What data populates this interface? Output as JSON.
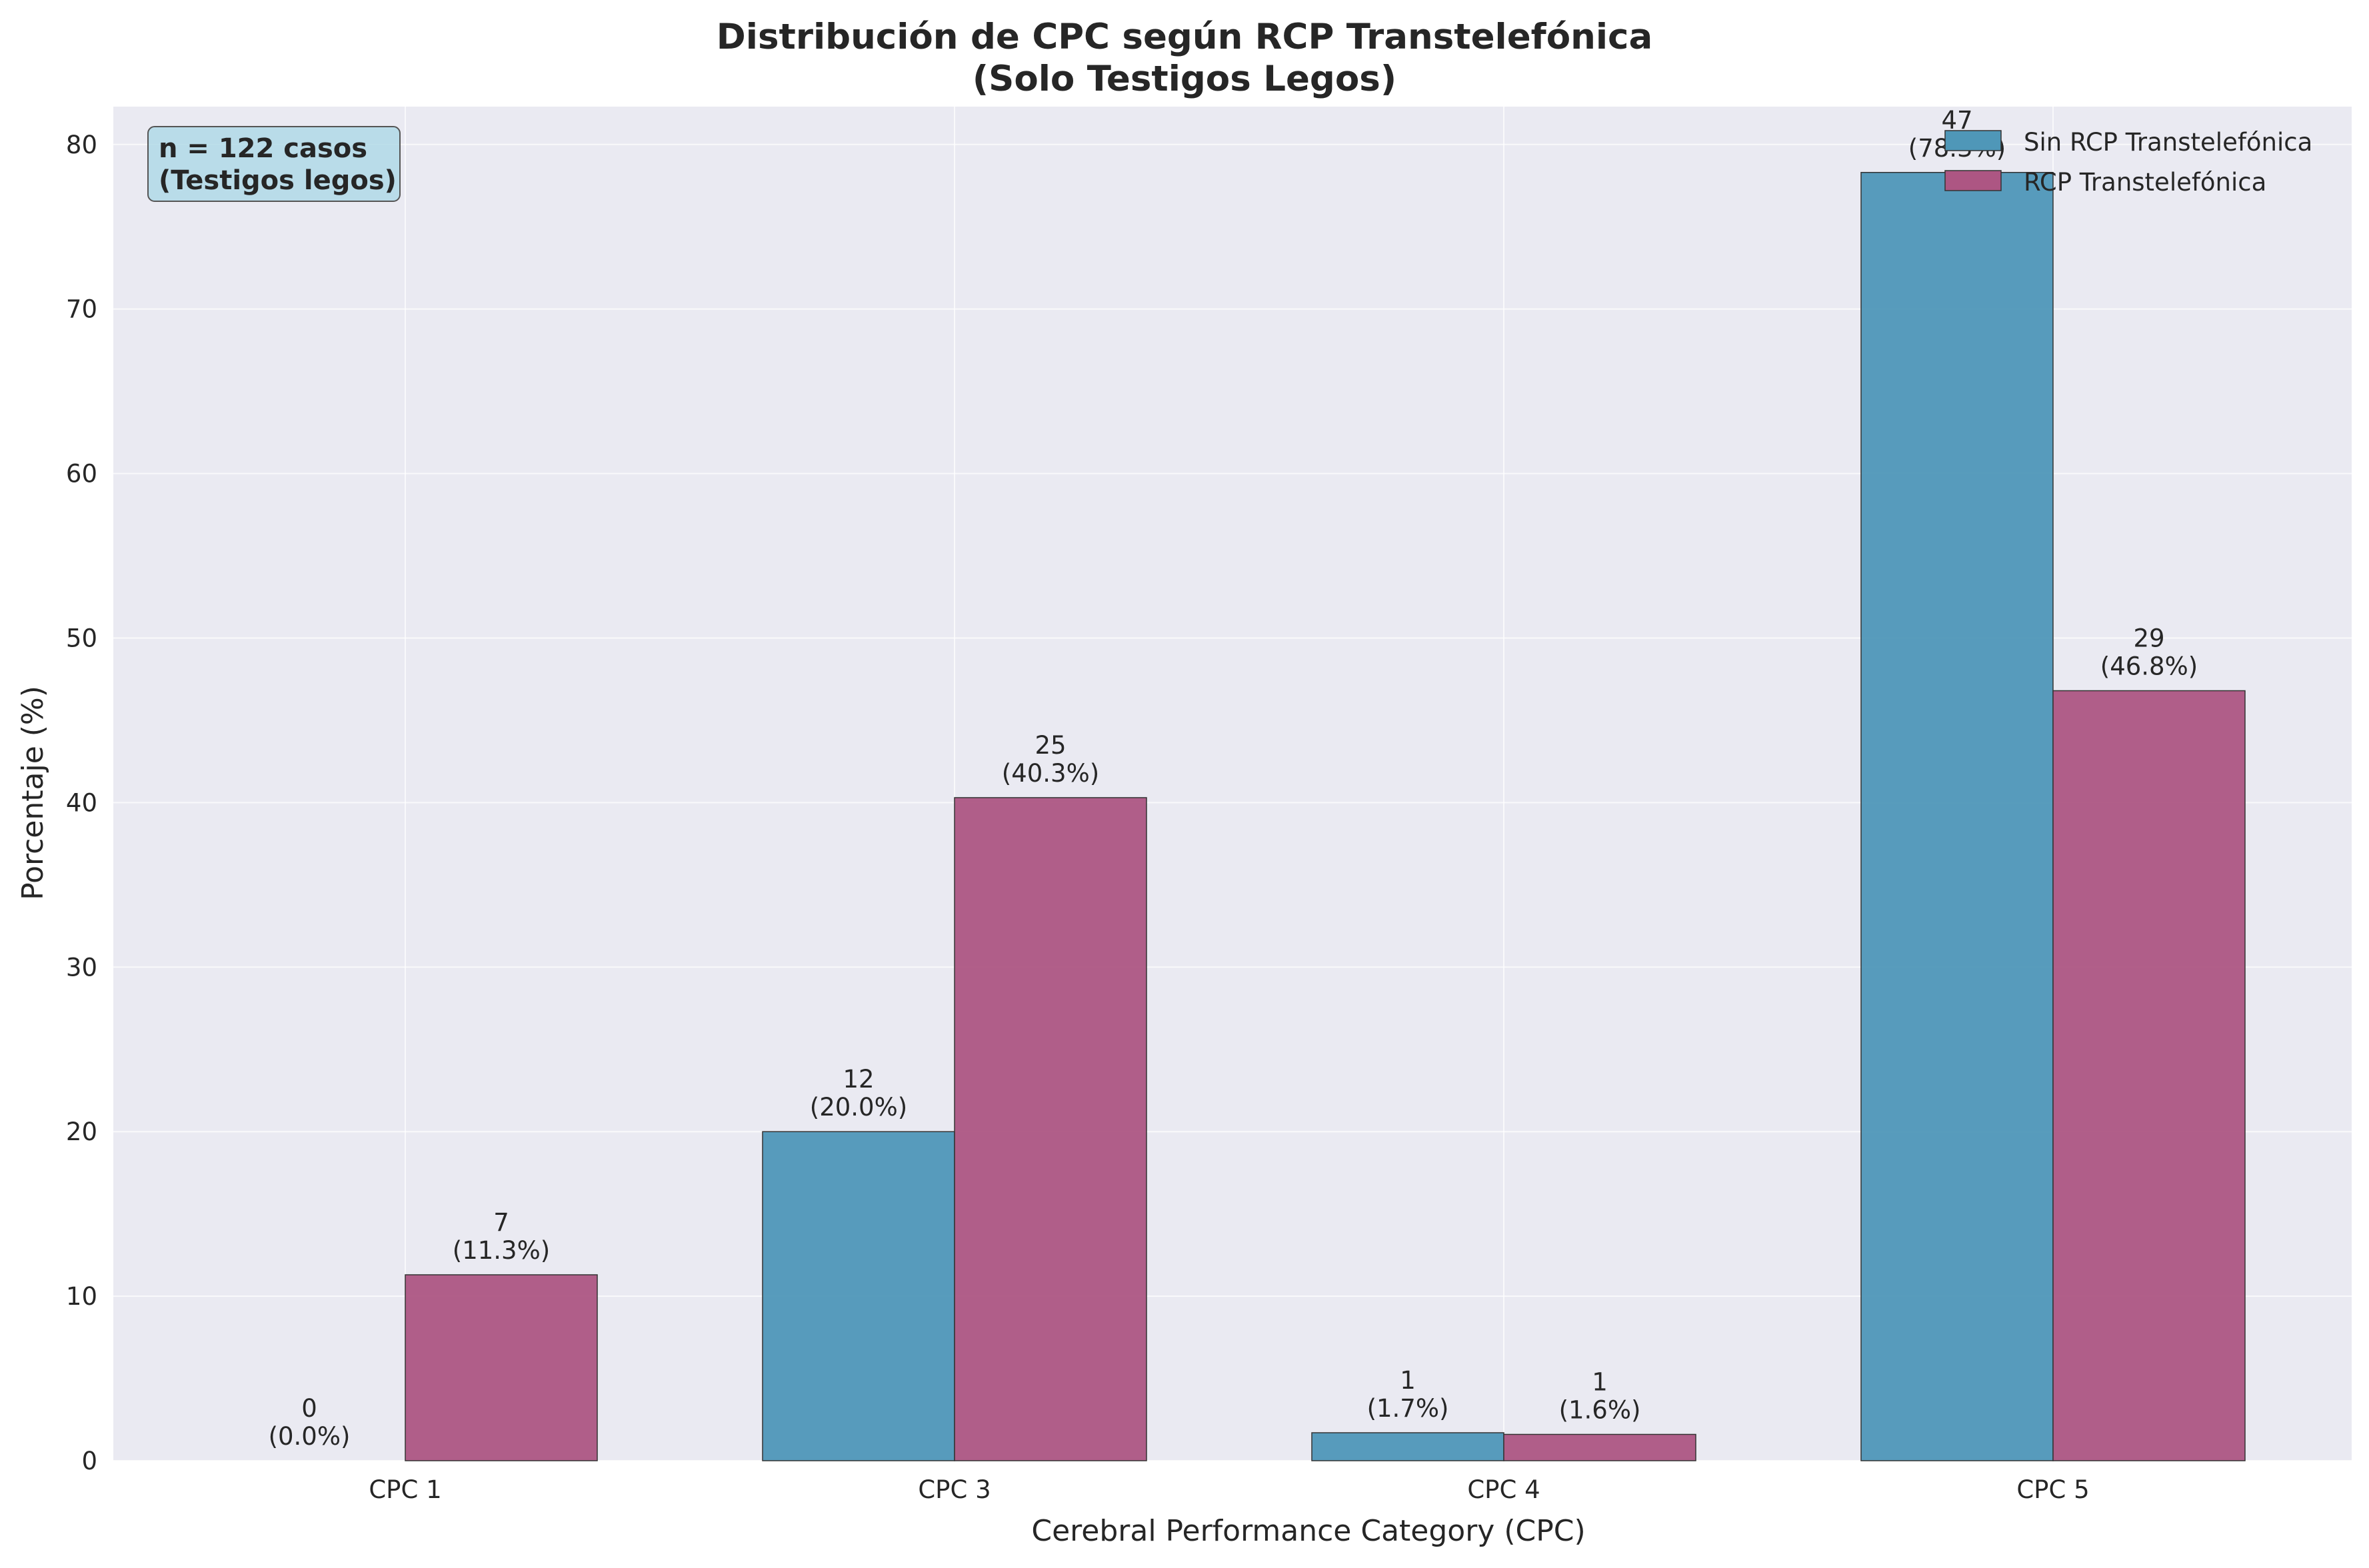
{
  "chart_data": {
    "type": "bar",
    "title_lines": [
      "Distribución de CPC según RCP Transtelefónica",
      "(Solo Testigos Legos)"
    ],
    "xlabel": "Cerebral Performance Category (CPC)",
    "ylabel": "Porcentaje (%)",
    "categories": [
      "CPC 1",
      "CPC 3",
      "CPC 4",
      "CPC 5"
    ],
    "ylim": [
      0,
      82.3
    ],
    "yticks": [
      0,
      10,
      20,
      30,
      40,
      50,
      60,
      70,
      80
    ],
    "grid": true,
    "legend_position": "top-right",
    "series": [
      {
        "name": "Sin RCP Transtelefónica",
        "color": "#4f97b8",
        "values": [
          0.0,
          20.0,
          1.7,
          78.3
        ],
        "counts": [
          0,
          12,
          1,
          47
        ],
        "labels": [
          "(0.0%)",
          "(20.0%)",
          "(1.7%)",
          "(78.3%)"
        ]
      },
      {
        "name": "RCP Transtelefónica",
        "color": "#ad5683",
        "values": [
          11.3,
          40.3,
          1.6,
          46.8
        ],
        "counts": [
          7,
          25,
          1,
          29
        ],
        "labels": [
          "(11.3%)",
          "(40.3%)",
          "(1.6%)",
          "(46.8%)"
        ]
      }
    ],
    "annotation_lines": [
      "n = 122 casos",
      "(Testigos legos)"
    ]
  }
}
